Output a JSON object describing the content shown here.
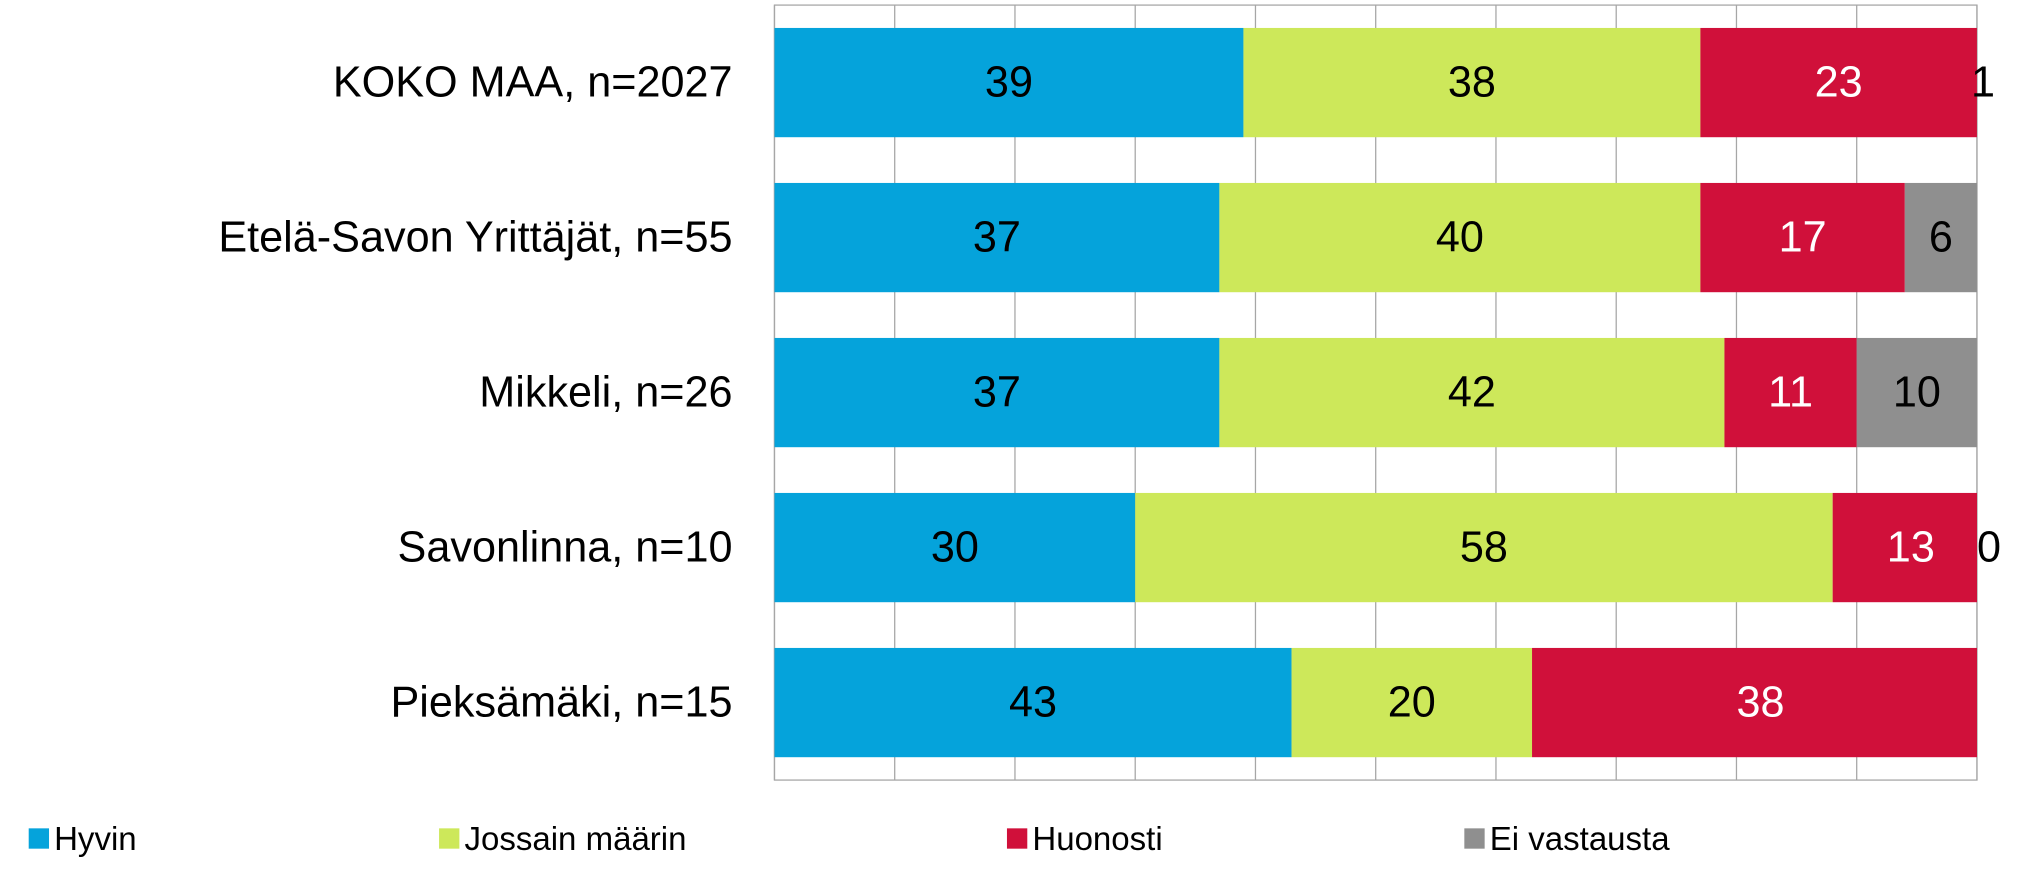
{
  "chart_data": {
    "type": "bar",
    "orientation": "horizontal",
    "stacked": true,
    "categories": [
      "KOKO MAA, n=2027",
      "Etelä-Savon Yrittäjät, n=55",
      "Mikkeli, n=26",
      "Savonlinna, n=10",
      "Pieksämäki, n=15"
    ],
    "series": [
      {
        "name": "Hyvin",
        "color": "#05a3db",
        "label_color": "#000000",
        "values": [
          39,
          37,
          37,
          30,
          43
        ]
      },
      {
        "name": "Jossain määrin",
        "color": "#cde85a",
        "label_color": "#000000",
        "values": [
          38,
          40,
          42,
          58,
          20
        ]
      },
      {
        "name": "Huonosti",
        "color": "#d0103a",
        "label_color": "#ffffff",
        "values": [
          23,
          17,
          11,
          13,
          38
        ]
      },
      {
        "name": "Ei vastausta",
        "color": "#8f8f8f",
        "label_color": "#000000",
        "values": [
          1,
          6,
          10,
          0,
          null
        ]
      }
    ],
    "xlim": [
      0,
      100
    ],
    "xticks": [
      0,
      10,
      20,
      30,
      40,
      50,
      60,
      70,
      80,
      90,
      100
    ],
    "grid": true,
    "legend": "bottom"
  }
}
